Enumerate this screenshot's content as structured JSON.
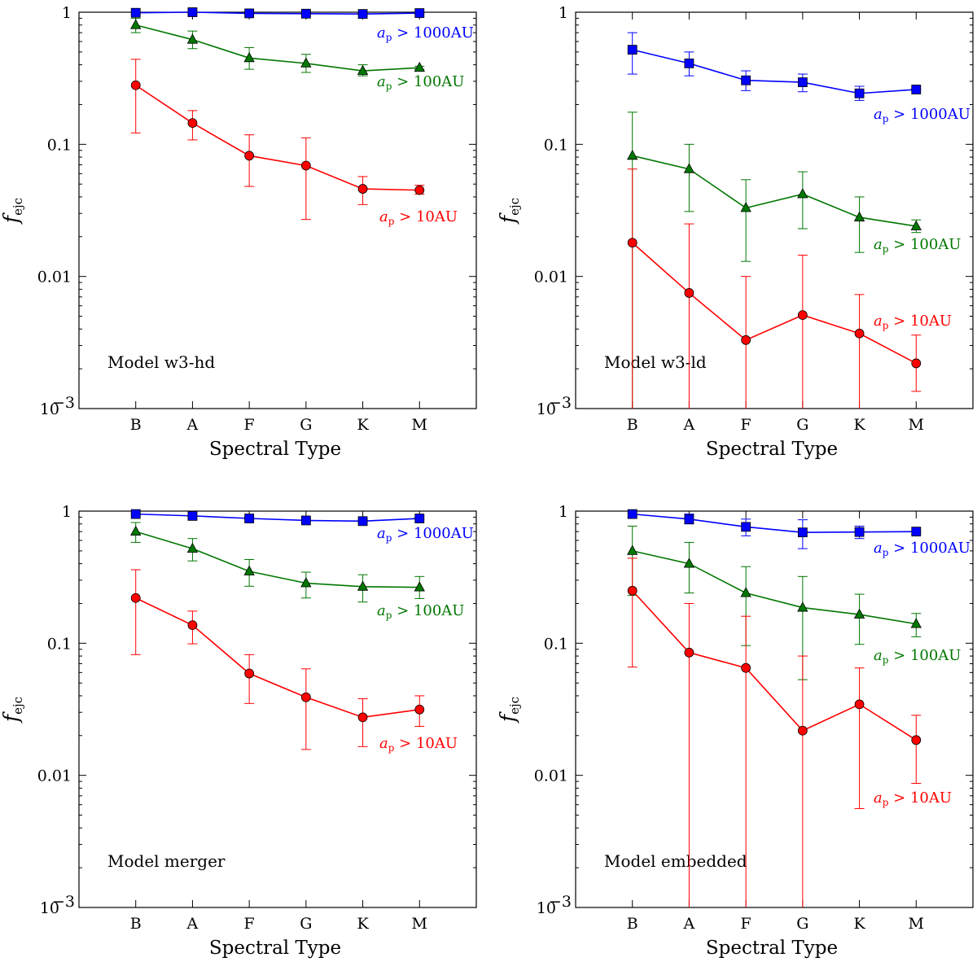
{
  "chart_data": [
    {
      "type": "line",
      "title": "Model w3-hd",
      "xlabel": "Spectral Type",
      "ylabel": "f_ejc",
      "yscale": "log",
      "ylim": [
        0.001,
        1
      ],
      "categories": [
        "B",
        "A",
        "F",
        "G",
        "K",
        "M"
      ],
      "yticks": [
        "1",
        "0.1",
        "0.01",
        "10^-3"
      ],
      "series": [
        {
          "name": "a_p > 1000AU",
          "color": "#0000ff",
          "marker": "square",
          "values": [
            0.99,
            1.0,
            0.98,
            0.975,
            0.97,
            0.985
          ],
          "err_low": [
            0.97,
            0.98,
            0.965,
            0.96,
            0.955,
            0.97
          ],
          "err_high": [
            1.0,
            1.0,
            0.995,
            0.99,
            0.985,
            1.0
          ]
        },
        {
          "name": "a_p > 100AU",
          "color": "#007700",
          "marker": "triangle",
          "values": [
            0.8,
            0.62,
            0.45,
            0.41,
            0.36,
            0.38
          ],
          "err_low": [
            0.7,
            0.53,
            0.37,
            0.35,
            0.33,
            0.37
          ],
          "err_high": [
            0.9,
            0.72,
            0.54,
            0.48,
            0.4,
            0.39
          ]
        },
        {
          "name": "a_p > 10AU",
          "color": "#ff0000",
          "marker": "circle",
          "values": [
            0.28,
            0.145,
            0.082,
            0.069,
            0.046,
            0.045
          ],
          "err_low": [
            0.122,
            0.108,
            0.048,
            0.027,
            0.035,
            0.042
          ],
          "err_high": [
            0.44,
            0.18,
            0.118,
            0.112,
            0.057,
            0.049
          ]
        }
      ]
    },
    {
      "type": "line",
      "title": "Model w3-ld",
      "xlabel": "Spectral Type",
      "ylabel": "f_ejc",
      "yscale": "log",
      "ylim": [
        0.001,
        1
      ],
      "categories": [
        "B",
        "A",
        "F",
        "G",
        "K",
        "M"
      ],
      "yticks": [
        "1",
        "0.1",
        "0.01",
        "10^-3"
      ],
      "series": [
        {
          "name": "a_p > 1000AU",
          "color": "#0000ff",
          "marker": "square",
          "values": [
            0.52,
            0.41,
            0.305,
            0.295,
            0.243,
            0.26
          ],
          "err_low": [
            0.34,
            0.33,
            0.255,
            0.25,
            0.215,
            0.255
          ],
          "err_high": [
            0.7,
            0.5,
            0.36,
            0.34,
            0.275,
            0.265
          ]
        },
        {
          "name": "a_p > 100AU",
          "color": "#007700",
          "marker": "triangle",
          "values": [
            0.082,
            0.065,
            0.033,
            0.042,
            0.028,
            0.024
          ],
          "err_low": [
            0.001,
            0.031,
            0.013,
            0.023,
            0.0152,
            0.0215
          ],
          "err_high": [
            0.175,
            0.1,
            0.054,
            0.062,
            0.04,
            0.0268
          ]
        },
        {
          "name": "a_p > 10AU",
          "color": "#ff0000",
          "marker": "circle",
          "values": [
            0.018,
            0.0075,
            0.0033,
            0.0051,
            0.0037,
            0.0022
          ],
          "err_low": [
            0.001,
            0.001,
            0.001,
            0.001,
            0.001,
            0.00135
          ],
          "err_high": [
            0.065,
            0.025,
            0.01,
            0.0145,
            0.0073,
            0.0036
          ]
        }
      ]
    },
    {
      "type": "line",
      "title": "Model merger",
      "xlabel": "Spectral Type",
      "ylabel": "f_ejc",
      "yscale": "log",
      "ylim": [
        0.001,
        1
      ],
      "categories": [
        "B",
        "A",
        "F",
        "G",
        "K",
        "M"
      ],
      "yticks": [
        "1",
        "0.1",
        "0.01",
        "10^-3"
      ],
      "series": [
        {
          "name": "a_p > 1000AU",
          "color": "#0000ff",
          "marker": "square",
          "values": [
            0.95,
            0.92,
            0.88,
            0.85,
            0.84,
            0.88
          ],
          "err_low": [
            0.93,
            0.9,
            0.86,
            0.83,
            0.82,
            0.86
          ],
          "err_high": [
            0.97,
            0.94,
            0.9,
            0.87,
            0.86,
            0.9
          ]
        },
        {
          "name": "a_p > 100AU",
          "color": "#007700",
          "marker": "triangle",
          "values": [
            0.7,
            0.52,
            0.35,
            0.285,
            0.268,
            0.265
          ],
          "err_low": [
            0.58,
            0.42,
            0.27,
            0.22,
            0.205,
            0.218
          ],
          "err_high": [
            0.82,
            0.62,
            0.43,
            0.345,
            0.33,
            0.32
          ]
        },
        {
          "name": "a_p > 10AU",
          "color": "#ff0000",
          "marker": "circle",
          "values": [
            0.22,
            0.137,
            0.059,
            0.039,
            0.0275,
            0.0315
          ],
          "err_low": [
            0.082,
            0.099,
            0.035,
            0.0157,
            0.0165,
            0.0235
          ],
          "err_high": [
            0.36,
            0.175,
            0.082,
            0.064,
            0.038,
            0.04
          ]
        }
      ]
    },
    {
      "type": "line",
      "title": "Model embedded",
      "xlabel": "Spectral Type",
      "ylabel": "f_ejc",
      "yscale": "log",
      "ylim": [
        0.001,
        1
      ],
      "categories": [
        "B",
        "A",
        "F",
        "G",
        "K",
        "M"
      ],
      "yticks": [
        "1",
        "0.1",
        "0.01",
        "10^-3"
      ],
      "series": [
        {
          "name": "a_p > 1000AU",
          "color": "#0000ff",
          "marker": "square",
          "values": [
            0.95,
            0.87,
            0.76,
            0.69,
            0.695,
            0.7
          ],
          "err_low": [
            0.9,
            0.8,
            0.65,
            0.52,
            0.62,
            0.7
          ],
          "err_high": [
            1.0,
            0.95,
            0.87,
            0.86,
            0.77,
            0.7
          ]
        },
        {
          "name": "a_p > 100AU",
          "color": "#007700",
          "marker": "triangle",
          "values": [
            0.5,
            0.4,
            0.24,
            0.186,
            0.165,
            0.14
          ],
          "err_low": [
            0.23,
            0.24,
            0.096,
            0.053,
            0.098,
            0.112
          ],
          "err_high": [
            0.77,
            0.58,
            0.38,
            0.32,
            0.235,
            0.168
          ]
        },
        {
          "name": "a_p > 10AU",
          "color": "#ff0000",
          "marker": "circle",
          "values": [
            0.25,
            0.085,
            0.065,
            0.0218,
            0.0345,
            0.0185
          ],
          "err_low": [
            0.066,
            0.001,
            0.001,
            0.001,
            0.0056,
            0.0087
          ],
          "err_high": [
            0.44,
            0.2,
            0.16,
            0.08,
            0.065,
            0.0285
          ]
        }
      ]
    }
  ]
}
